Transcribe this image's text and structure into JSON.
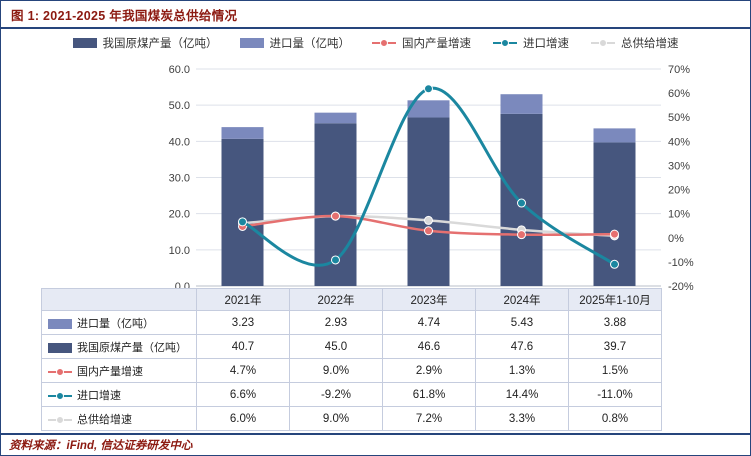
{
  "figure": {
    "title": "图 1: 2021-2025 年我国煤炭总供给情况",
    "source": "资料来源：iFind, 信达证券研发中心"
  },
  "colors": {
    "frame_navy": "#26457C",
    "title_red": "#8C1A11",
    "production_bar": "#46567E",
    "import_bar": "#7B89BD",
    "domestic_growth_line": "#E57070",
    "import_growth_line": "#1B87A0",
    "total_growth_line": "#D9D9D9",
    "table_header_bg": "#E6EAF4"
  },
  "legend": {
    "items": [
      {
        "label": "我国原煤产量（亿吨）",
        "type": "bar",
        "color": "#46567E"
      },
      {
        "label": "进口量（亿吨）",
        "type": "bar",
        "color": "#7B89BD"
      },
      {
        "label": "国内产量增速",
        "type": "line",
        "color": "#E57070"
      },
      {
        "label": "进口增速",
        "type": "line",
        "color": "#1B87A0"
      },
      {
        "label": "总供给增速",
        "type": "line",
        "color": "#D9D9D9"
      }
    ]
  },
  "chart_data": {
    "type": "bar+line",
    "title": "图 1: 2021-2025 年我国煤炭总供给情况",
    "categories": [
      "2021年",
      "2022年",
      "2023年",
      "2024年",
      "2025年1-10月"
    ],
    "bar_series": [
      {
        "name": "我国原煤产量（亿吨）",
        "values": [
          40.7,
          45.0,
          46.6,
          47.6,
          39.7
        ],
        "color": "#46567E",
        "axis": "left",
        "stack": "supply"
      },
      {
        "name": "进口量（亿吨）",
        "values": [
          3.23,
          2.93,
          4.74,
          5.43,
          3.88
        ],
        "color": "#7B89BD",
        "axis": "left",
        "stack": "supply"
      }
    ],
    "line_series": [
      {
        "name": "总供给增速",
        "values": [
          6.0,
          9.0,
          7.2,
          3.3,
          0.8
        ],
        "color": "#D9D9D9",
        "axis": "right",
        "width": 2.5
      },
      {
        "name": "国内产量增速",
        "values": [
          4.7,
          9.0,
          2.9,
          1.3,
          1.5
        ],
        "color": "#E57070",
        "axis": "right",
        "width": 2.5
      },
      {
        "name": "进口增速",
        "values": [
          6.6,
          -9.2,
          61.8,
          14.4,
          -11.0
        ],
        "color": "#1B87A0",
        "axis": "right",
        "width": 3
      }
    ],
    "left_axis": {
      "min": 0,
      "max": 60,
      "step": 10,
      "format": "0.0"
    },
    "right_axis": {
      "min": -20,
      "max": 70,
      "step": 10,
      "format": "percent"
    },
    "grid": true,
    "legend_position": "top"
  },
  "table": {
    "columns": [
      "2021年",
      "2022年",
      "2023年",
      "2024年",
      "2025年1-10月"
    ],
    "rows": [
      {
        "label": "进口量（亿吨）",
        "marker": "bar",
        "color": "#7B89BD",
        "values": [
          "3.23",
          "2.93",
          "4.74",
          "5.43",
          "3.88"
        ]
      },
      {
        "label": "我国原煤产量（亿吨）",
        "marker": "bar",
        "color": "#46567E",
        "values": [
          "40.7",
          "45.0",
          "46.6",
          "47.6",
          "39.7"
        ]
      },
      {
        "label": "国内产量增速",
        "marker": "line",
        "color": "#E57070",
        "values": [
          "4.7%",
          "9.0%",
          "2.9%",
          "1.3%",
          "1.5%"
        ]
      },
      {
        "label": "进口增速",
        "marker": "line",
        "color": "#1B87A0",
        "values": [
          "6.6%",
          "-9.2%",
          "61.8%",
          "14.4%",
          "-11.0%"
        ]
      },
      {
        "label": "总供给增速",
        "marker": "line",
        "color": "#D9D9D9",
        "values": [
          "6.0%",
          "9.0%",
          "7.2%",
          "3.3%",
          "0.8%"
        ]
      }
    ]
  }
}
